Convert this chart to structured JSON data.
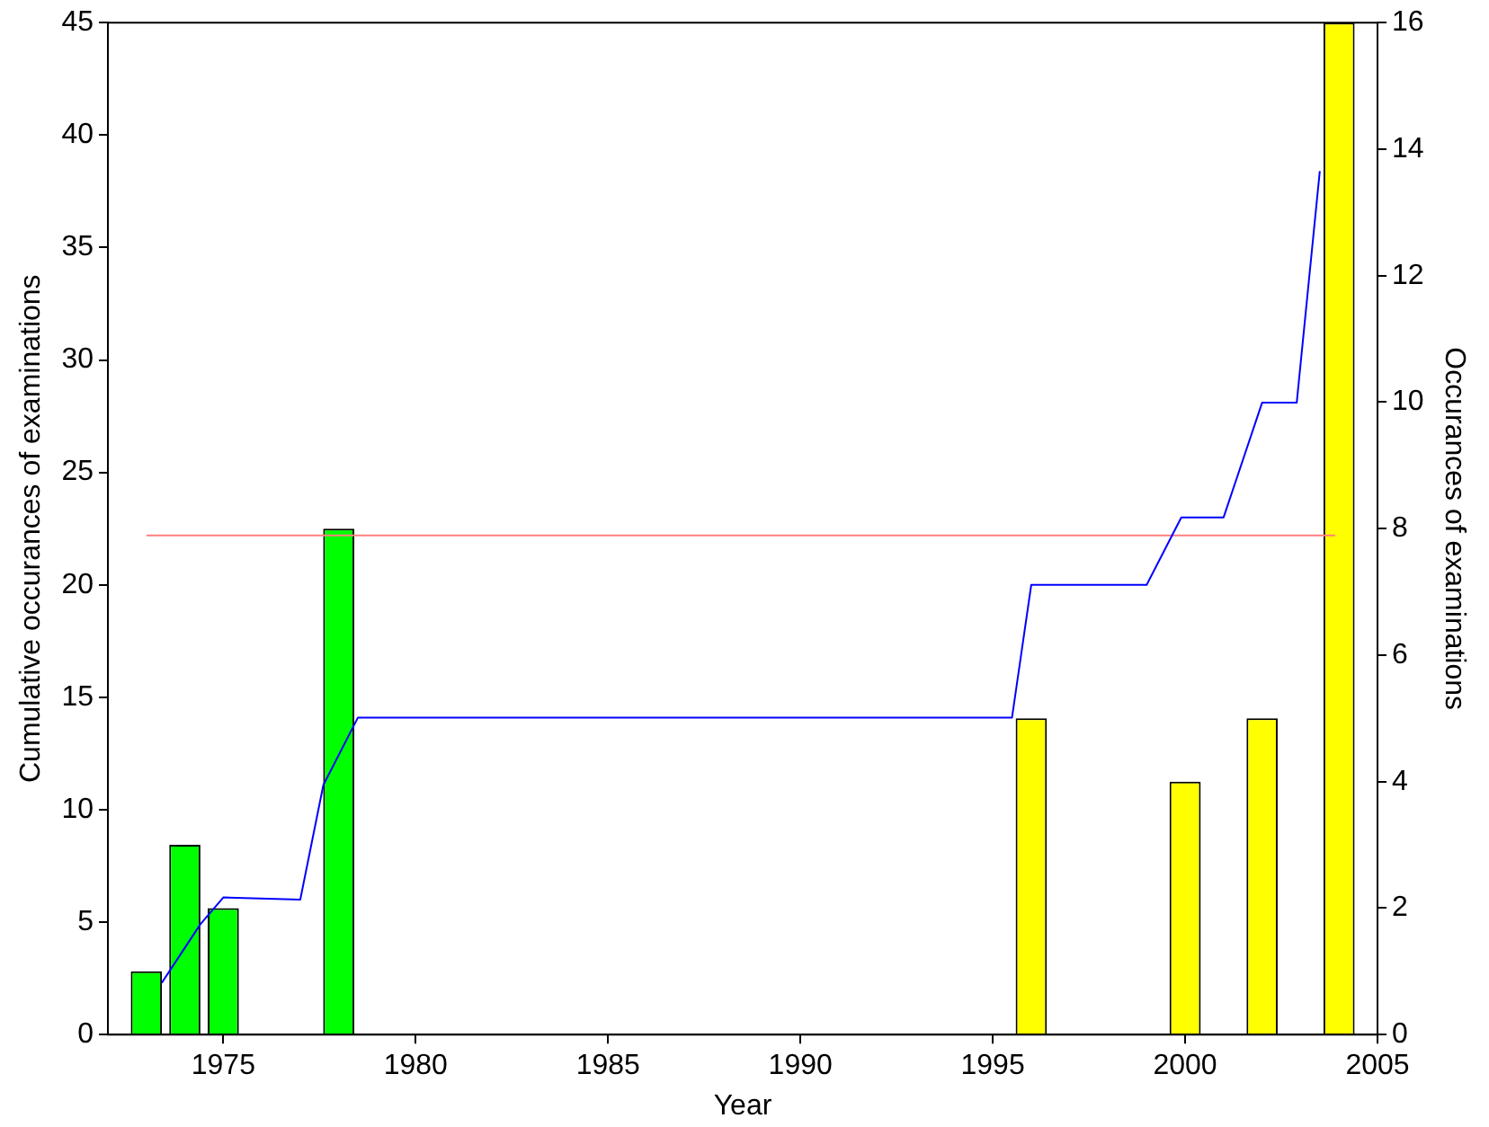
{
  "chart_data": {
    "type": "bar",
    "xlabel": "Year",
    "ylabel": "Cumulative occurances of examinations",
    "y2label": "Occurances of examinations",
    "xlim": [
      1972,
      2005
    ],
    "xticks": [
      1975,
      1980,
      1985,
      1990,
      1995,
      2000,
      2005
    ],
    "ylim": [
      0,
      45
    ],
    "yticks": [
      0,
      5,
      10,
      15,
      20,
      25,
      30,
      35,
      40,
      45
    ],
    "y2lim": [
      0,
      16
    ],
    "y2ticks": [
      0,
      2,
      4,
      6,
      8,
      10,
      12,
      14,
      16
    ],
    "grid": false,
    "legend": false,
    "series": [
      {
        "axis": "y2",
        "x": [
          1973,
          1974,
          1975,
          1978,
          1996,
          2000,
          2002,
          2004
        ],
        "values": [
          1,
          3,
          2,
          8,
          5,
          4,
          5,
          16
        ],
        "colors": [
          "#00ff00",
          "#00ff00",
          "#00ff00",
          "#00ff00",
          "#ffff00",
          "#ffff00",
          "#ffff00",
          "#ffff00"
        ]
      },
      {
        "type": "line",
        "color": "#0000ff",
        "x": [
          1973.4,
          1974.4,
          1975,
          1977,
          1977.6,
          1978.5,
          1995.5,
          1996,
          1999,
          1999.9,
          2001,
          2002,
          2002.9,
          2003.5
        ],
        "values": [
          2.3,
          4.9,
          6.1,
          6,
          11.1,
          14.1,
          14.1,
          20,
          20,
          23,
          23,
          28.1,
          28.1,
          38.4
        ]
      },
      {
        "type": "line",
        "color": "#ff7f7f",
        "x": [
          1973,
          2003.9
        ],
        "values": [
          22.2,
          22.2
        ]
      }
    ]
  }
}
